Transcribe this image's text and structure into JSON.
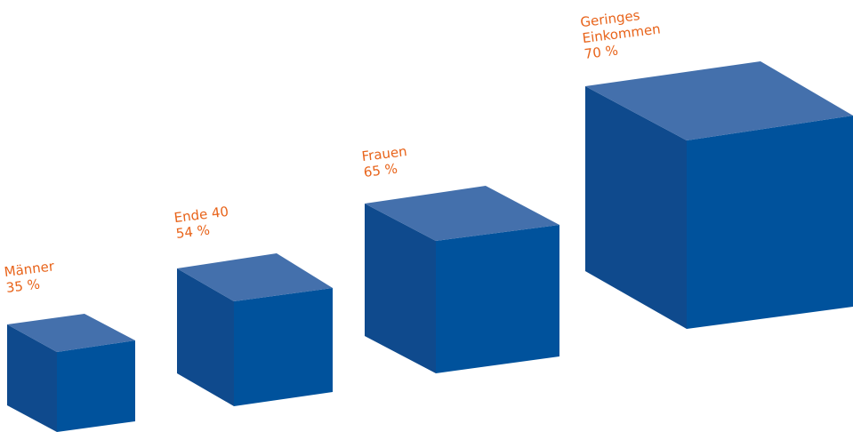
{
  "colors": {
    "cube_top": "#4470ac",
    "cube_left": "#0f4a8d",
    "cube_front": "#00529c",
    "label": "#e8641b"
  },
  "chart_data": {
    "type": "bar",
    "categories": [
      "Männer",
      "Ende 40",
      "Frauen",
      "Geringes Einkommen"
    ],
    "values": [
      35,
      54,
      65,
      70
    ],
    "value_labels": [
      "35 %",
      "54 %",
      "65 %",
      "70 %"
    ],
    "title": "",
    "xlabel": "",
    "ylabel": "",
    "grid": false,
    "legend": "none"
  },
  "labels": [
    {
      "lines": [
        "Männer"
      ],
      "value": "35 %"
    },
    {
      "lines": [
        "Ende 40"
      ],
      "value": "54 %"
    },
    {
      "lines": [
        "Frauen"
      ],
      "value": "65 %"
    },
    {
      "lines": [
        "Geringes",
        "Einkommen"
      ],
      "value": "70 %"
    }
  ]
}
